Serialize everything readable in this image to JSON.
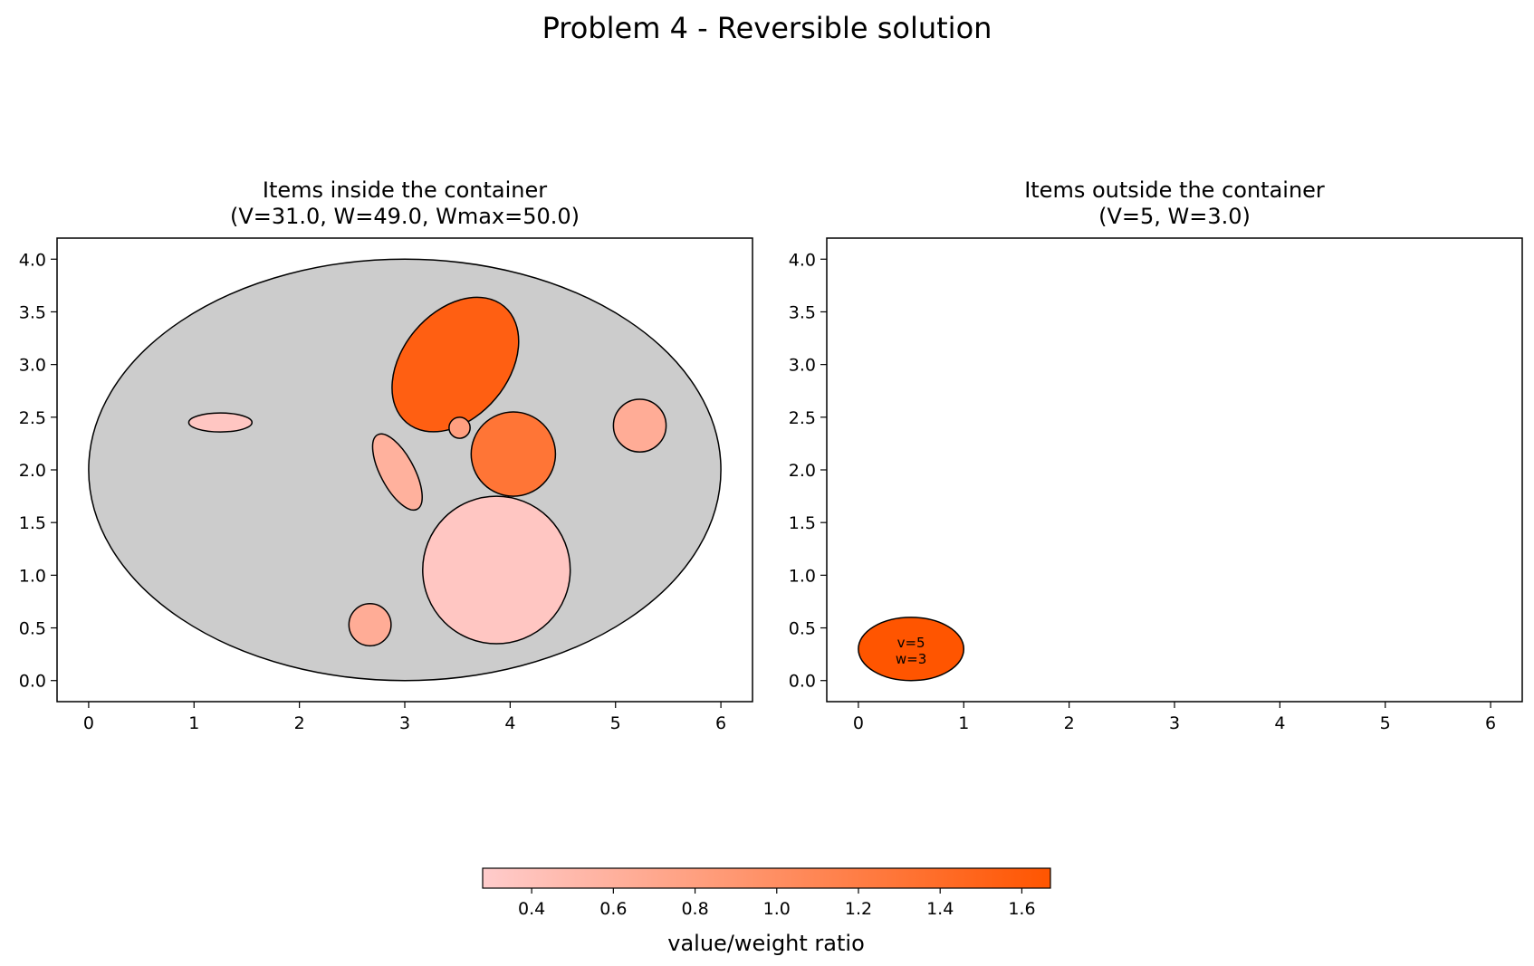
{
  "figure": {
    "title": "Problem 4 - Reversible solution"
  },
  "panels": [
    {
      "title_line1": "Items inside the container",
      "title_line2": "(V=31.0, W=49.0, Wmax=50.0)"
    },
    {
      "title_line1": "Items outside the container",
      "title_line2": "(V=5, W=3.0)"
    }
  ],
  "colorbar": {
    "label": "value/weight ratio",
    "range": [
      0.28,
      1.67
    ],
    "ticks": [
      "0.4",
      "0.6",
      "0.8",
      "1.0",
      "1.2",
      "1.4",
      "1.6"
    ],
    "colors": {
      "low": "#ffcccc",
      "high": "#ff5500"
    }
  },
  "chart_data": [
    {
      "type": "scatter",
      "title": "Items inside the container\n(V=31.0, W=49.0, Wmax=50.0)",
      "xlim": [
        -0.3,
        6.3
      ],
      "ylim": [
        -0.2,
        4.2
      ],
      "xticks": [
        "0",
        "1",
        "2",
        "3",
        "4",
        "5",
        "6"
      ],
      "yticks": [
        "0.0",
        "0.5",
        "1.0",
        "1.5",
        "2.0",
        "2.5",
        "3.0",
        "3.5",
        "4.0"
      ],
      "container": {
        "shape": "ellipse",
        "cx": 3.0,
        "cy": 2.0,
        "rx": 3.0,
        "ry": 2.0,
        "fill": "#cccccc"
      },
      "items": [
        {
          "shape": "ellipse",
          "cx": 3.48,
          "cy": 3.0,
          "rx": 0.72,
          "ry": 0.5,
          "angle": -50,
          "ratio": 1.55
        },
        {
          "shape": "ellipse",
          "cx": 1.25,
          "cy": 2.45,
          "rx": 0.3,
          "ry": 0.09,
          "angle": 0,
          "ratio": 0.35
        },
        {
          "shape": "ellipse",
          "cx": 2.93,
          "cy": 1.98,
          "rx": 0.4,
          "ry": 0.16,
          "angle": 62,
          "ratio": 0.6
        },
        {
          "shape": "circle",
          "cx": 3.52,
          "cy": 2.4,
          "r": 0.1,
          "ratio": 0.8
        },
        {
          "shape": "circle",
          "cx": 4.03,
          "cy": 2.15,
          "r": 0.4,
          "ratio": 1.3
        },
        {
          "shape": "circle",
          "cx": 5.23,
          "cy": 2.42,
          "r": 0.25,
          "ratio": 0.65
        },
        {
          "shape": "circle",
          "cx": 3.87,
          "cy": 1.05,
          "r": 0.7,
          "ratio": 0.35
        },
        {
          "shape": "circle",
          "cx": 2.67,
          "cy": 0.53,
          "r": 0.2,
          "ratio": 0.65
        }
      ]
    },
    {
      "type": "scatter",
      "title": "Items outside the container\n(V=5, W=3.0)",
      "xlim": [
        -0.3,
        6.3
      ],
      "ylim": [
        -0.2,
        4.2
      ],
      "xticks": [
        "0",
        "1",
        "2",
        "3",
        "4",
        "5",
        "6"
      ],
      "yticks": [
        "0.0",
        "0.5",
        "1.0",
        "1.5",
        "2.0",
        "2.5",
        "3.0",
        "3.5",
        "4.0"
      ],
      "items": [
        {
          "shape": "ellipse",
          "cx": 0.5,
          "cy": 0.3,
          "rx": 0.5,
          "ry": 0.3,
          "angle": 0,
          "ratio": 1.67,
          "label_v": "v=5",
          "label_w": "w=3"
        }
      ]
    }
  ]
}
